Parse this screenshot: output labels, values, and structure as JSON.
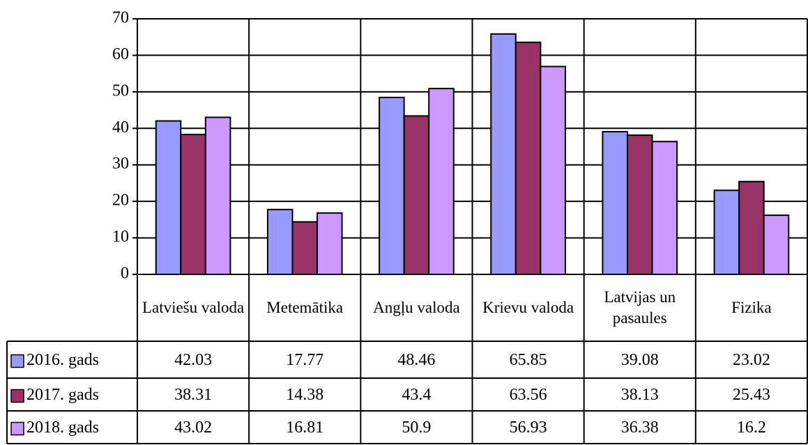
{
  "chart_data": {
    "type": "bar",
    "categories": [
      "Latviešu valoda",
      "Metemātika",
      "Angļu valoda",
      "Krievu valoda",
      "Latvijas un pasaules",
      "Fizika"
    ],
    "series": [
      {
        "name": "2016. gads",
        "color": "#9999ff",
        "values": [
          42.03,
          17.77,
          48.46,
          65.85,
          39.08,
          23.02
        ]
      },
      {
        "name": "2017. gads",
        "color": "#993366",
        "values": [
          38.31,
          14.38,
          43.4,
          63.56,
          38.13,
          25.43
        ]
      },
      {
        "name": "2018. gads",
        "color": "#cc99ff",
        "values": [
          43.02,
          16.81,
          50.9,
          56.93,
          36.38,
          16.2
        ]
      }
    ],
    "ylim": [
      0,
      70
    ],
    "yticks": [
      0,
      10,
      20,
      30,
      40,
      50,
      60,
      70
    ],
    "grid": true,
    "data_table": true
  }
}
